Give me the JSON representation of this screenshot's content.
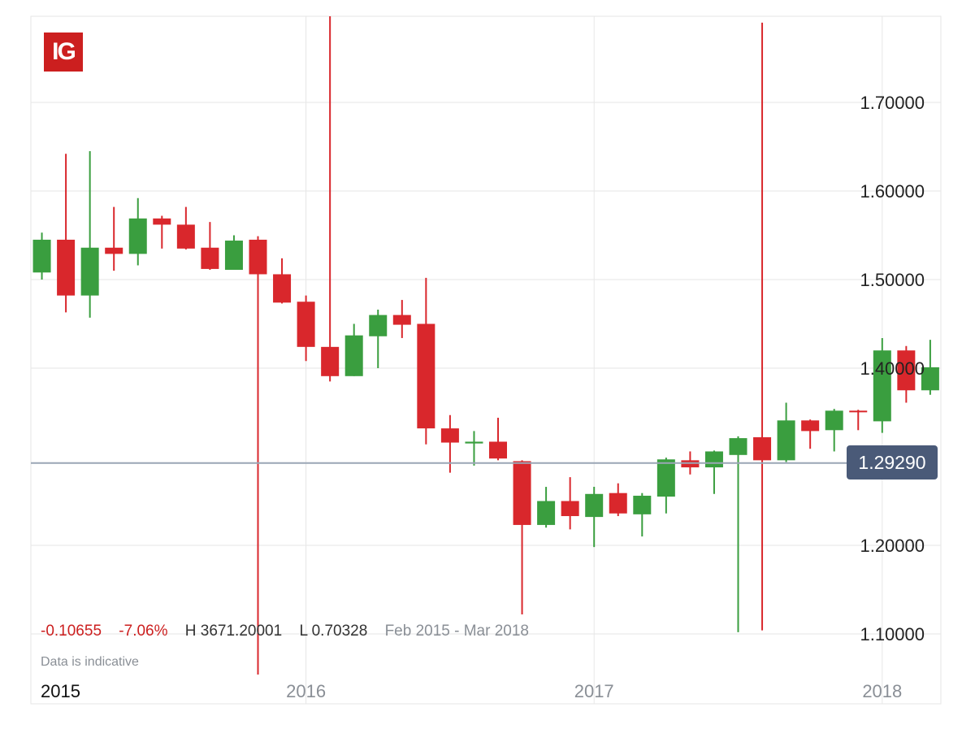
{
  "logo": {
    "text": "IG",
    "color": "#cc1f1f"
  },
  "stats": {
    "change": "-0.10655",
    "change_pct": "-7.06%",
    "high": "H 3671.20001",
    "low": "L 0.70328",
    "range": "Feb 2015 - Mar 2018"
  },
  "note": "Data is indicative",
  "current_price": {
    "label": "1.29290",
    "value": 1.2929
  },
  "colors": {
    "up": "#3a9e3f",
    "down": "#d9272c",
    "grid": "#e6e6e6",
    "price_line": "#9aa6b5",
    "tag": "#4a5a78"
  },
  "chart_data": {
    "type": "candlestick",
    "x_labels": [
      "2015",
      "2016",
      "2017",
      "2018"
    ],
    "y_ticks": [
      "1.70000",
      "1.60000",
      "1.50000",
      "1.40000",
      "1.20000",
      "1.10000"
    ],
    "y_tick_values": [
      1.7,
      1.6,
      1.5,
      1.4,
      1.2,
      1.1
    ],
    "ylim": [
      1.04,
      1.8
    ],
    "xlim": [
      "2015-01",
      "2018-03"
    ],
    "candles": [
      {
        "month": "2015-02",
        "open": 1.508,
        "high": 1.553,
        "low": 1.5,
        "close": 1.545
      },
      {
        "month": "2015-03",
        "open": 1.545,
        "high": 1.642,
        "low": 1.463,
        "close": 1.482
      },
      {
        "month": "2015-04",
        "open": 1.482,
        "high": 1.645,
        "low": 1.457,
        "close": 1.536
      },
      {
        "month": "2015-05",
        "open": 1.536,
        "high": 1.582,
        "low": 1.51,
        "close": 1.529
      },
      {
        "month": "2015-06",
        "open": 1.529,
        "high": 1.592,
        "low": 1.516,
        "close": 1.569
      },
      {
        "month": "2015-07",
        "open": 1.569,
        "high": 1.572,
        "low": 1.535,
        "close": 1.562
      },
      {
        "month": "2015-08",
        "open": 1.562,
        "high": 1.582,
        "low": 1.534,
        "close": 1.535
      },
      {
        "month": "2015-09",
        "open": 1.536,
        "high": 1.565,
        "low": 1.511,
        "close": 1.512
      },
      {
        "month": "2015-10",
        "open": 1.511,
        "high": 1.55,
        "low": 1.511,
        "close": 1.544
      },
      {
        "month": "2015-11",
        "open": 1.545,
        "high": 1.549,
        "low": 0.70328,
        "close": 1.506
      },
      {
        "month": "2015-12",
        "open": 1.506,
        "high": 1.524,
        "low": 1.473,
        "close": 1.474
      },
      {
        "month": "2016-01",
        "open": 1.475,
        "high": 1.482,
        "low": 1.408,
        "close": 1.424
      },
      {
        "month": "2016-02",
        "open": 1.424,
        "high": 3671.20001,
        "low": 1.385,
        "close": 1.391
      },
      {
        "month": "2016-03",
        "open": 1.391,
        "high": 1.45,
        "low": 1.391,
        "close": 1.437
      },
      {
        "month": "2016-04",
        "open": 1.436,
        "high": 1.466,
        "low": 1.4,
        "close": 1.46
      },
      {
        "month": "2016-05",
        "open": 1.46,
        "high": 1.477,
        "low": 1.434,
        "close": 1.449
      },
      {
        "month": "2016-06",
        "open": 1.45,
        "high": 1.502,
        "low": 1.314,
        "close": 1.332
      },
      {
        "month": "2016-07",
        "open": 1.332,
        "high": 1.347,
        "low": 1.282,
        "close": 1.316
      },
      {
        "month": "2016-08",
        "open": 1.315,
        "high": 1.329,
        "low": 1.29,
        "close": 1.317
      },
      {
        "month": "2016-09",
        "open": 1.317,
        "high": 1.344,
        "low": 1.296,
        "close": 1.298
      },
      {
        "month": "2016-10",
        "open": 1.295,
        "high": 1.296,
        "low": 1.122,
        "close": 1.223
      },
      {
        "month": "2016-11",
        "open": 1.223,
        "high": 1.266,
        "low": 1.22,
        "close": 1.25
      },
      {
        "month": "2016-12",
        "open": 1.25,
        "high": 1.277,
        "low": 1.218,
        "close": 1.233
      },
      {
        "month": "2017-01",
        "open": 1.232,
        "high": 1.266,
        "low": 1.198,
        "close": 1.258
      },
      {
        "month": "2017-02",
        "open": 1.259,
        "high": 1.27,
        "low": 1.233,
        "close": 1.236
      },
      {
        "month": "2017-03",
        "open": 1.235,
        "high": 1.259,
        "low": 1.21,
        "close": 1.256
      },
      {
        "month": "2017-04",
        "open": 1.255,
        "high": 1.299,
        "low": 1.236,
        "close": 1.297
      },
      {
        "month": "2017-05",
        "open": 1.296,
        "high": 1.306,
        "low": 1.28,
        "close": 1.288
      },
      {
        "month": "2017-06",
        "open": 1.288,
        "high": 1.307,
        "low": 1.258,
        "close": 1.306
      },
      {
        "month": "2017-07",
        "open": 1.302,
        "high": 1.323,
        "low": 1.102,
        "close": 1.321
      },
      {
        "month": "2017-08",
        "open": 1.322,
        "high": 1.79,
        "low": 1.104,
        "close": 1.296
      },
      {
        "month": "2017-09",
        "open": 1.296,
        "high": 1.361,
        "low": 1.294,
        "close": 1.341
      },
      {
        "month": "2017-10",
        "open": 1.341,
        "high": 1.342,
        "low": 1.309,
        "close": 1.329
      },
      {
        "month": "2017-11",
        "open": 1.33,
        "high": 1.354,
        "low": 1.306,
        "close": 1.352
      },
      {
        "month": "2017-12",
        "open": 1.352,
        "high": 1.353,
        "low": 1.33,
        "close": 1.351
      },
      {
        "month": "2018-01",
        "open": 1.34,
        "high": 1.434,
        "low": 1.327,
        "close": 1.42
      },
      {
        "month": "2018-02",
        "open": 1.42,
        "high": 1.425,
        "low": 1.361,
        "close": 1.375
      },
      {
        "month": "2018-03",
        "open": 1.375,
        "high": 1.432,
        "low": 1.37,
        "close": 1.401
      }
    ],
    "grid": true
  }
}
